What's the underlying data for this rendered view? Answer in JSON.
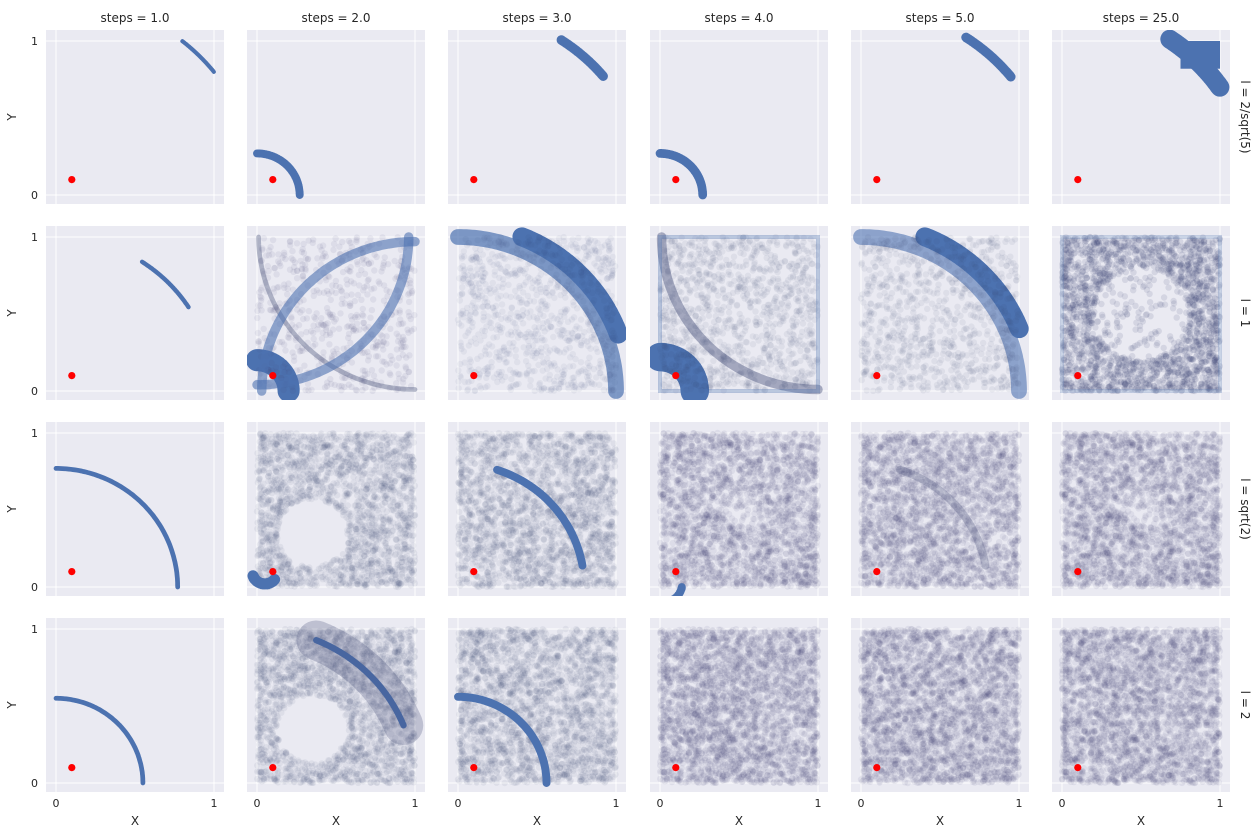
{
  "chart_data": {
    "type": "scatter",
    "facet_grid": true,
    "column_variable": "steps",
    "row_variable": "l",
    "column_labels": [
      "steps = 1.0",
      "steps = 2.0",
      "steps = 3.0",
      "steps = 4.0",
      "steps = 5.0",
      "steps = 25.0"
    ],
    "row_labels": [
      "l = 2/sqrt(5)",
      "l = 1",
      "l = sqrt(2)",
      "l = 2"
    ],
    "xlabel": "X",
    "ylabel": "Y",
    "xlim": [
      0,
      1
    ],
    "ylim": [
      0,
      1
    ],
    "xticks": [
      "0",
      "1"
    ],
    "yticks": [
      "0",
      "1"
    ],
    "grid": true,
    "colors": {
      "background": "#eaeaf2",
      "series": "#4c72b0",
      "faint": "#3a4470",
      "start_point": "#ff0000"
    },
    "start_point": {
      "x": 0.1,
      "y": 0.1
    },
    "panels": [
      [
        {
          "kind": "arc",
          "cx": 0,
          "cy": 0,
          "r": 1.28,
          "a1": 38,
          "a2": 51,
          "w": 0.026
        },
        {
          "kind": "arc",
          "cx": 0.1,
          "cy": 0.1,
          "r": 0.2,
          "a1": 270,
          "a2": 180,
          "w": 0.05,
          "dir": -1,
          "hide": true
        },
        {
          "kind": "stub"
        },
        {
          "kind": "stub"
        },
        {
          "kind": "stub"
        },
        {
          "kind": "stub"
        }
      ],
      [],
      [],
      []
    ]
  }
}
